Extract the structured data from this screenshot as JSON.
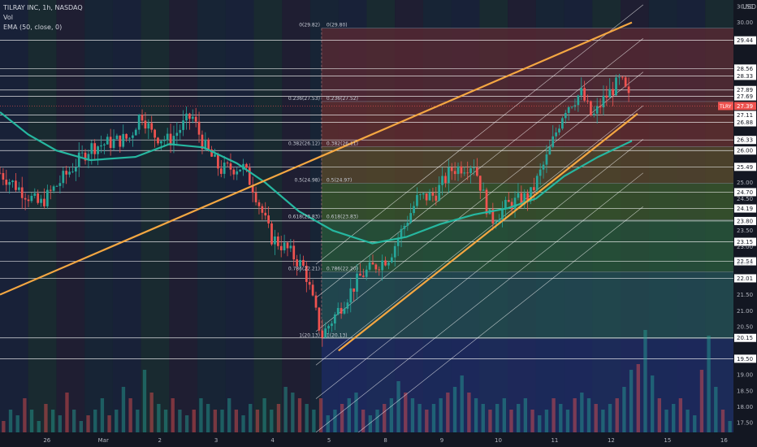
{
  "legend": {
    "symbol": "TILRAY INC, 1h, NASDAQ",
    "vol": "Vol",
    "ema": "EMA (50, close, 0)"
  },
  "axis_unit": "USD",
  "price_tag": {
    "label": "TLRY",
    "value": "27.39"
  },
  "colors": {
    "background": "#131722",
    "up": "#26a69a",
    "down": "#ef5350",
    "ema": "#26b7a0",
    "trend": "#f4a742",
    "hline": "#ffffff"
  },
  "chart_data": {
    "type": "candlestick",
    "symbol": "TLRY",
    "timeframe": "1h",
    "ylim": [
      17.2,
      30.7
    ],
    "y_ticks": [
      "30.50",
      "30.00",
      "29.44",
      "28.56",
      "28.33",
      "27.89",
      "27.69",
      "27.39",
      "27.11",
      "26.88",
      "26.33",
      "26.00",
      "25.49",
      "25.00",
      "24.70",
      "24.50",
      "24.19",
      "23.80",
      "23.50",
      "23.15",
      "23.00",
      "22.54",
      "22.50",
      "22.01",
      "21.50",
      "21.00",
      "20.50",
      "20.15",
      "19.50",
      "19.00",
      "18.50",
      "18.00",
      "17.50"
    ],
    "x_ticks": [
      {
        "label": "26",
        "x": 0.0
      },
      {
        "label": "Mar",
        "x": 1.0
      },
      {
        "label": "2",
        "x": 2.0
      },
      {
        "label": "3",
        "x": 3.0
      },
      {
        "label": "4",
        "x": 4.0
      },
      {
        "label": "5",
        "x": 5.0
      },
      {
        "label": "8",
        "x": 6.0
      },
      {
        "label": "9",
        "x": 7.0
      },
      {
        "label": "10",
        "x": 8.0
      },
      {
        "label": "11",
        "x": 9.0
      },
      {
        "label": "12",
        "x": 10.0
      },
      {
        "label": "15",
        "x": 11.0
      },
      {
        "label": "16",
        "x": 12.0
      }
    ],
    "xlim": [
      -0.4,
      12.6
    ],
    "horizontal_levels": [
      29.44,
      28.56,
      28.33,
      27.89,
      27.69,
      27.11,
      26.88,
      26.33,
      26.0,
      25.49,
      24.7,
      24.19,
      23.8,
      23.15,
      22.54,
      22.01,
      20.15,
      19.5
    ],
    "fib_levels": [
      {
        "label": "0(29.82)",
        "label2": "0(29.80)",
        "value": 29.82
      },
      {
        "label": "0.236(27.53)",
        "label2": "0.236(27.52)",
        "value": 27.53
      },
      {
        "label": "0.382(26.12)",
        "label2": "0.382(26.11)",
        "value": 26.12
      },
      {
        "label": "0.5(24.98)",
        "label2": "0.5(24.97)",
        "value": 24.98
      },
      {
        "label": "0.618(23.83)",
        "label2": "0.618(23.83)",
        "value": 23.83
      },
      {
        "label": "0.786(22.21)",
        "label2": "0.786(22.20)",
        "value": 22.21
      },
      {
        "label": "1(20.13)",
        "label2": "1(20.13)",
        "value": 20.13
      }
    ],
    "ohlc_keypoints": [
      {
        "x": -0.4,
        "c": 25.3
      },
      {
        "x": 0.3,
        "c": 24.3
      },
      {
        "x": 0.8,
        "c": 25.3
      },
      {
        "x": 1.2,
        "c": 26.1
      },
      {
        "x": 1.9,
        "c": 26.4
      },
      {
        "x": 2.1,
        "c": 27.2
      },
      {
        "x": 2.3,
        "c": 26.5
      },
      {
        "x": 2.6,
        "c": 26.3
      },
      {
        "x": 3.0,
        "c": 27.1
      },
      {
        "x": 3.2,
        "c": 26.2
      },
      {
        "x": 3.5,
        "c": 25.4
      },
      {
        "x": 3.9,
        "c": 25.5
      },
      {
        "x": 4.1,
        "c": 24.8
      },
      {
        "x": 4.4,
        "c": 23.3
      },
      {
        "x": 4.7,
        "c": 22.9
      },
      {
        "x": 5.0,
        "c": 22.3
      },
      {
        "x": 5.3,
        "c": 20.2
      },
      {
        "x": 5.7,
        "c": 21.3
      },
      {
        "x": 6.0,
        "c": 22.1
      },
      {
        "x": 6.5,
        "c": 22.7
      },
      {
        "x": 7.0,
        "c": 24.5
      },
      {
        "x": 7.3,
        "c": 24.6
      },
      {
        "x": 7.6,
        "c": 25.4
      },
      {
        "x": 8.0,
        "c": 25.6
      },
      {
        "x": 8.3,
        "c": 23.8
      },
      {
        "x": 8.6,
        "c": 24.3
      },
      {
        "x": 9.0,
        "c": 24.6
      },
      {
        "x": 9.3,
        "c": 25.8
      },
      {
        "x": 9.6,
        "c": 27.3
      },
      {
        "x": 9.9,
        "c": 27.8
      },
      {
        "x": 10.1,
        "c": 27.0
      },
      {
        "x": 10.3,
        "c": 27.6
      },
      {
        "x": 10.6,
        "c": 28.2
      },
      {
        "x": 10.8,
        "c": 27.4
      }
    ],
    "ema50_keypoints": [
      {
        "x": -0.4,
        "v": 27.2
      },
      {
        "x": 0.1,
        "v": 26.5
      },
      {
        "x": 0.6,
        "v": 26.0
      },
      {
        "x": 1.2,
        "v": 25.7
      },
      {
        "x": 2.0,
        "v": 25.8
      },
      {
        "x": 2.6,
        "v": 26.2
      },
      {
        "x": 3.2,
        "v": 26.1
      },
      {
        "x": 3.8,
        "v": 25.6
      },
      {
        "x": 4.3,
        "v": 25.0
      },
      {
        "x": 4.9,
        "v": 24.1
      },
      {
        "x": 5.5,
        "v": 23.5
      },
      {
        "x": 6.2,
        "v": 23.1
      },
      {
        "x": 6.8,
        "v": 23.3
      },
      {
        "x": 7.4,
        "v": 23.7
      },
      {
        "x": 8.0,
        "v": 24.0
      },
      {
        "x": 8.6,
        "v": 24.2
      },
      {
        "x": 9.1,
        "v": 24.5
      },
      {
        "x": 9.6,
        "v": 25.2
      },
      {
        "x": 10.2,
        "v": 25.8
      },
      {
        "x": 10.8,
        "v": 26.3
      }
    ],
    "trendlines": [
      {
        "x1": -0.4,
        "y1": 21.5,
        "x2": 10.8,
        "y2": 30.0
      },
      {
        "x1": 5.6,
        "y1": 19.75,
        "x2": 10.9,
        "y2": 27.15
      }
    ],
    "volume_keypoints": [
      0.1,
      0.2,
      0.15,
      0.3,
      0.2,
      0.1,
      0.25,
      0.2,
      0.15,
      0.35,
      0.2,
      0.1,
      0.15,
      0.2,
      0.3,
      0.15,
      0.2,
      0.4,
      0.3,
      0.2,
      0.55,
      0.35,
      0.25,
      0.2,
      0.3,
      0.2,
      0.15,
      0.2,
      0.3,
      0.25,
      0.2,
      0.2,
      0.3,
      0.2,
      0.15,
      0.25,
      0.2,
      0.3,
      0.2,
      0.25,
      0.4,
      0.35,
      0.3,
      0.25,
      0.2,
      0.3,
      0.15,
      0.2,
      0.25,
      0.3,
      0.35,
      0.2,
      0.15,
      0.2,
      0.25,
      0.3,
      0.45,
      0.35,
      0.3,
      0.25,
      0.2,
      0.25,
      0.3,
      0.35,
      0.4,
      0.5,
      0.35,
      0.3,
      0.25,
      0.2,
      0.25,
      0.3,
      0.2,
      0.25,
      0.3,
      0.2,
      0.15,
      0.2,
      0.3,
      0.25,
      0.2,
      0.3,
      0.35,
      0.3,
      0.25,
      0.2,
      0.25,
      0.3,
      0.4,
      0.55,
      0.6,
      0.9,
      0.5,
      0.3,
      0.2,
      0.25,
      0.3,
      0.2,
      0.15,
      0.55,
      0.85,
      0.4,
      0.2,
      0.1
    ]
  }
}
